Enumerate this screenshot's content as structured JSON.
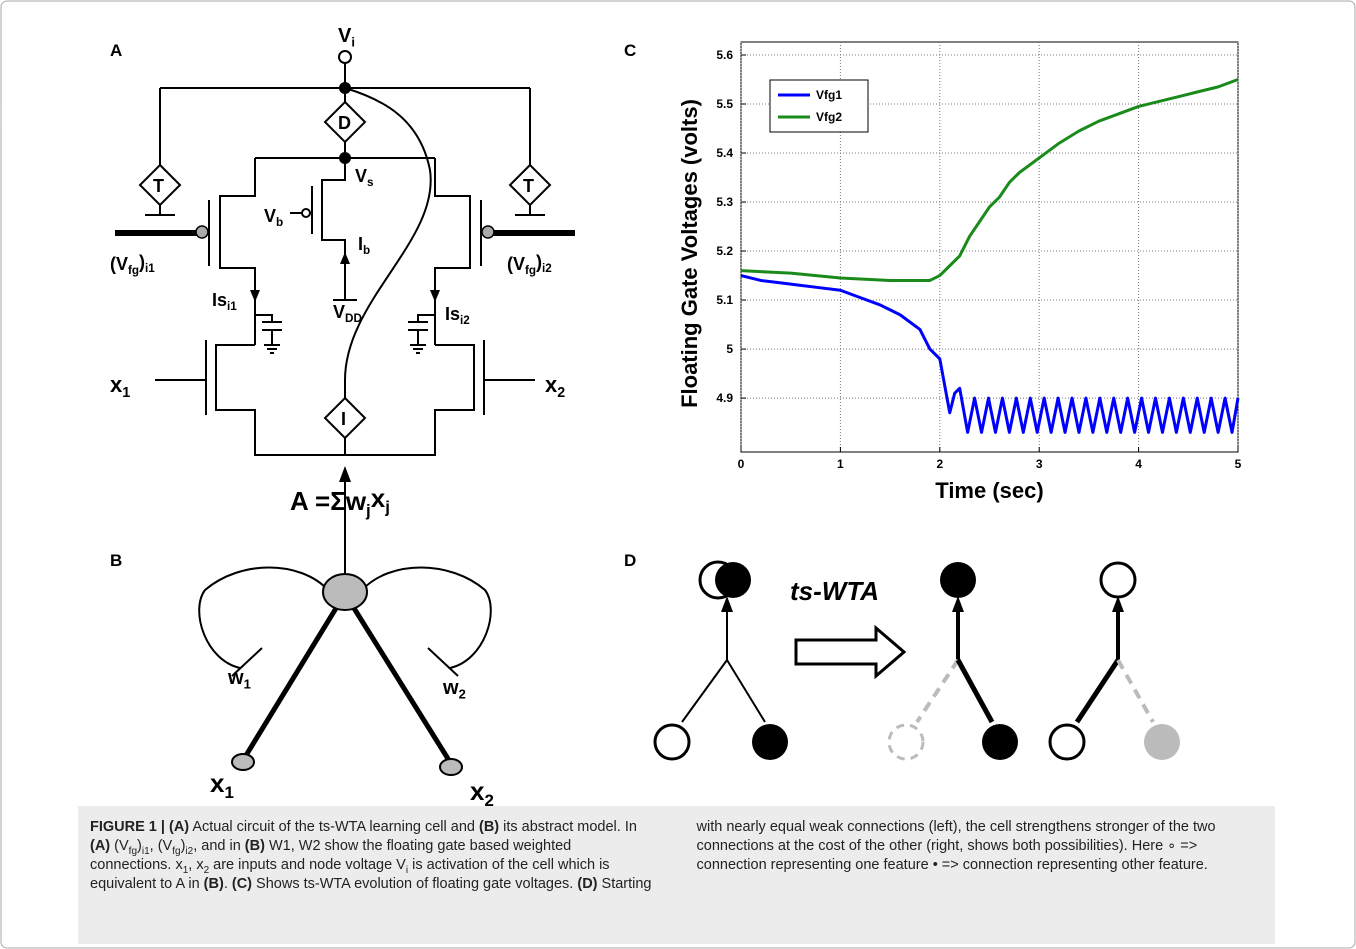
{
  "panel_labels": [
    "A",
    "B",
    "C",
    "D"
  ],
  "circuit": {
    "labels": [
      [
        "V",
        "i"
      ],
      [
        "V",
        "s"
      ],
      [
        "V",
        "b"
      ],
      [
        "I",
        "b"
      ],
      [
        "V",
        "DD"
      ],
      [
        "(V",
        "fg",
        ")",
        "i1"
      ],
      [
        "(V",
        "fg",
        ")",
        "i2"
      ],
      [
        "Is",
        "i1"
      ],
      [
        "Is",
        "i2"
      ],
      [
        "x",
        "1"
      ],
      [
        "x",
        "2"
      ],
      [
        "T"
      ],
      [
        "T"
      ],
      [
        "D"
      ],
      [
        "I"
      ]
    ]
  },
  "model": {
    "labels": [
      [
        "A =Σw",
        "j",
        "x",
        "j"
      ],
      [
        "w",
        "1"
      ],
      [
        "w",
        "2"
      ],
      [
        "x",
        "1"
      ],
      [
        "x",
        "2"
      ]
    ]
  },
  "transition": {
    "label": "ts-WTA"
  },
  "chart_data": {
    "type": "line",
    "xlabel": "Time (sec)",
    "ylabel": "Floating Gate Voltages (volts)",
    "xlim": [
      0,
      5
    ],
    "xticks": [
      0,
      1,
      2,
      3,
      4,
      5
    ],
    "ylim": [
      4.79,
      5.6
    ],
    "yticks": [
      4.9,
      5,
      5.1,
      5.2,
      5.3,
      5.4,
      5.5,
      5.6
    ],
    "grid": true,
    "legend": "upper left",
    "series": [
      {
        "name": "Vfg1",
        "color": "#0000ff",
        "x": [
          0,
          0.2,
          0.4,
          0.6,
          0.8,
          1.0,
          1.2,
          1.4,
          1.6,
          1.8,
          1.9,
          2.0,
          2.1,
          2.15,
          2.2,
          2.28,
          2.35,
          2.42,
          2.49,
          2.56,
          2.63,
          2.7,
          2.77,
          2.84,
          2.91,
          2.98,
          3.05,
          3.12,
          3.19,
          3.26,
          3.33,
          3.4,
          3.47,
          3.54,
          3.61,
          3.68,
          3.75,
          3.82,
          3.89,
          3.96,
          4.03,
          4.1,
          4.17,
          4.24,
          4.31,
          4.38,
          4.45,
          4.52,
          4.59,
          4.66,
          4.73,
          4.8,
          4.87,
          4.94,
          5.0
        ],
        "values": [
          5.15,
          5.14,
          5.135,
          5.13,
          5.125,
          5.12,
          5.105,
          5.09,
          5.07,
          5.04,
          5.0,
          4.98,
          4.87,
          4.91,
          4.92,
          4.83,
          4.9,
          4.83,
          4.9,
          4.83,
          4.9,
          4.83,
          4.9,
          4.83,
          4.9,
          4.83,
          4.9,
          4.83,
          4.9,
          4.83,
          4.9,
          4.83,
          4.9,
          4.83,
          4.9,
          4.83,
          4.9,
          4.83,
          4.9,
          4.83,
          4.9,
          4.83,
          4.9,
          4.83,
          4.9,
          4.83,
          4.9,
          4.83,
          4.9,
          4.83,
          4.9,
          4.83,
          4.9,
          4.83,
          4.9
        ]
      },
      {
        "name": "Vfg2",
        "color": "#1a8a1a",
        "x": [
          0,
          0.5,
          1,
          1.5,
          1.9,
          2.0,
          2.1,
          2.2,
          2.3,
          2.4,
          2.5,
          2.6,
          2.7,
          2.8,
          3.0,
          3.2,
          3.4,
          3.6,
          3.8,
          4.0,
          4.2,
          4.4,
          4.6,
          4.8,
          5.0
        ],
        "values": [
          5.16,
          5.155,
          5.145,
          5.14,
          5.14,
          5.15,
          5.17,
          5.19,
          5.23,
          5.26,
          5.29,
          5.31,
          5.34,
          5.36,
          5.39,
          5.42,
          5.445,
          5.465,
          5.48,
          5.495,
          5.505,
          5.515,
          5.525,
          5.535,
          5.55
        ]
      }
    ]
  },
  "caption": {
    "runs": [
      {
        "text": "FIGURE 1 | (A)",
        "style": "bold"
      },
      {
        "text": " Actual circuit of the ts-WTA learning cell and "
      },
      {
        "text": "(B)",
        "style": "bold"
      },
      {
        "text": " its abstract model. In "
      },
      {
        "text": "(A)",
        "style": "bold"
      },
      {
        "text": " (V"
      },
      {
        "text": "fg",
        "style": "sub"
      },
      {
        "text": ")"
      },
      {
        "text": "i1",
        "style": "sub"
      },
      {
        "text": ", (V"
      },
      {
        "text": "fg",
        "style": "sub"
      },
      {
        "text": ")"
      },
      {
        "text": "i2",
        "style": "sub"
      },
      {
        "text": ", and in "
      },
      {
        "text": "(B)",
        "style": "bold"
      },
      {
        "text": " W1, W2 show the floating gate based weighted connections. x"
      },
      {
        "text": "1",
        "style": "sub"
      },
      {
        "text": ", x"
      },
      {
        "text": "2",
        "style": "sub"
      },
      {
        "text": " are inputs and node voltage V"
      },
      {
        "text": "i",
        "style": "sub"
      },
      {
        "text": " is activation of the cell which is equivalent to A in "
      },
      {
        "text": "(B)",
        "style": "bold"
      },
      {
        "text": ". "
      },
      {
        "text": "(C)",
        "style": "bold"
      },
      {
        "text": " Shows ts-WTA evolution of floating gate voltages. "
      },
      {
        "text": "(D)",
        "style": "bold"
      },
      {
        "text": " Starting with nearly equal weak connections (left), the cell strengthens stronger of the two connections at the cost of the other (right, shows both possibilities). Here ∘ => connection representing one feature • => connection representing other feature."
      }
    ]
  }
}
